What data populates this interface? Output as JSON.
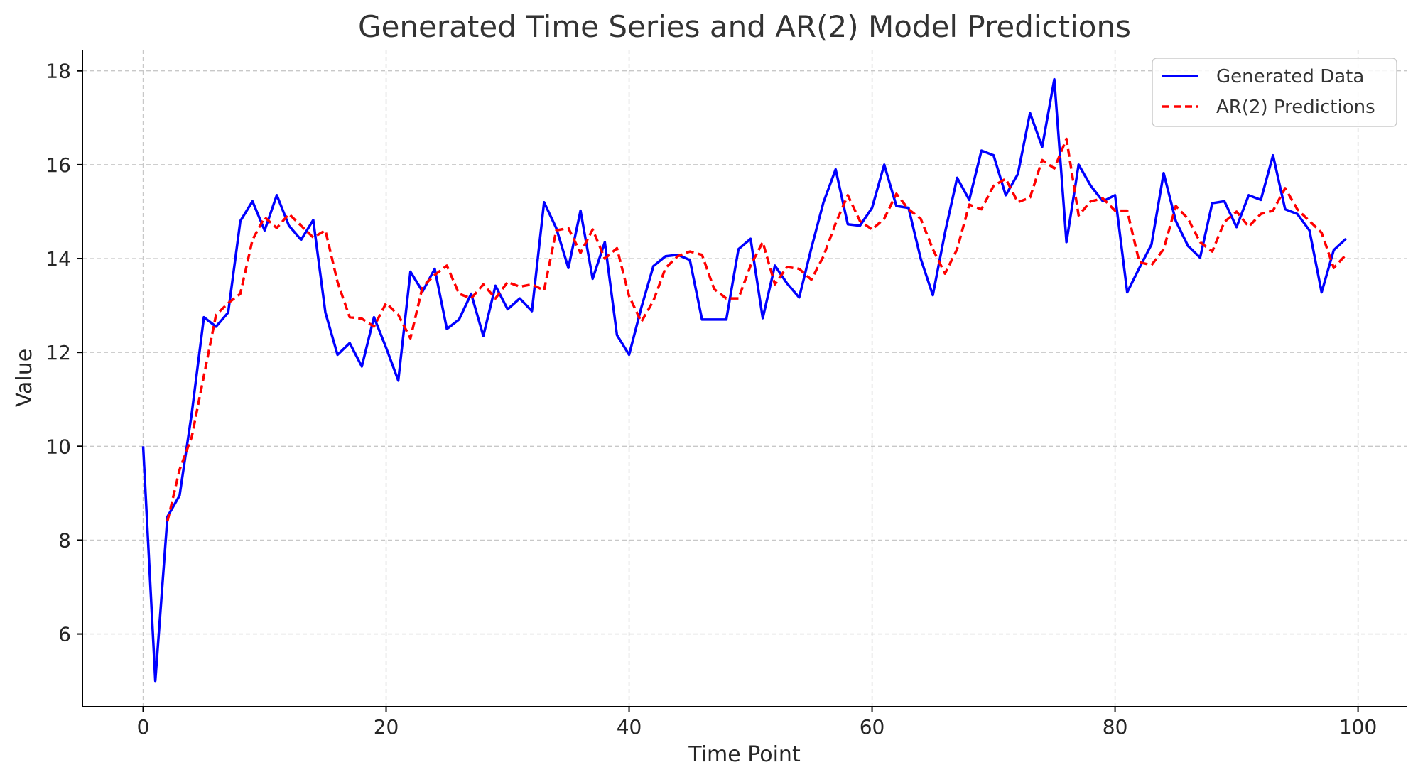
{
  "chart_data": {
    "type": "line",
    "title": "Generated Time Series and AR(2) Model Predictions",
    "xlabel": "Time Point",
    "ylabel": "Value",
    "xlim": [
      -5,
      104
    ],
    "ylim": [
      4.45,
      18.45
    ],
    "xticks": [
      0,
      20,
      40,
      60,
      80,
      100
    ],
    "yticks": [
      6,
      8,
      10,
      12,
      14,
      16,
      18
    ],
    "grid": true,
    "legend_position": "top-right",
    "series": [
      {
        "name": "Generated Data",
        "color": "#0000ff",
        "style": "solid",
        "x_start": 0,
        "values": [
          10.0,
          5.0,
          8.5,
          8.95,
          10.7,
          12.75,
          12.55,
          12.85,
          14.8,
          15.22,
          14.6,
          15.35,
          14.7,
          14.4,
          14.82,
          12.85,
          11.95,
          12.2,
          11.7,
          12.75,
          12.1,
          11.4,
          13.72,
          13.3,
          13.78,
          12.5,
          12.7,
          13.25,
          12.35,
          13.42,
          12.92,
          13.15,
          12.88,
          15.2,
          14.65,
          13.8,
          15.02,
          13.57,
          14.35,
          12.37,
          11.95,
          12.95,
          13.84,
          14.05,
          14.08,
          13.97,
          12.7,
          12.7,
          12.7,
          14.2,
          14.42,
          12.73,
          13.85,
          13.47,
          13.17,
          14.22,
          15.2,
          15.9,
          14.73,
          14.7,
          15.08,
          16.0,
          15.12,
          15.08,
          14.0,
          13.22,
          14.55,
          15.72,
          15.25,
          16.3,
          16.2,
          15.35,
          15.8,
          17.1,
          16.38,
          17.82,
          14.35,
          16.0,
          15.55,
          15.22,
          15.35,
          13.28,
          13.8,
          14.3,
          15.82,
          14.8,
          14.27,
          14.02,
          15.18,
          15.22,
          14.67,
          15.35,
          15.25,
          16.2,
          15.05,
          14.95,
          14.6,
          13.28,
          14.18,
          14.42
        ]
      },
      {
        "name": "AR(2) Predictions",
        "color": "#ff0000",
        "style": "dashed",
        "x_start": 2,
        "values": [
          8.4,
          9.5,
          10.2,
          11.5,
          12.8,
          13.05,
          13.25,
          14.4,
          14.88,
          14.65,
          14.95,
          14.7,
          14.45,
          14.6,
          13.5,
          12.75,
          12.72,
          12.55,
          13.05,
          12.8,
          12.3,
          13.4,
          13.65,
          13.85,
          13.25,
          13.15,
          13.45,
          13.15,
          13.5,
          13.4,
          13.45,
          13.32,
          14.6,
          14.65,
          14.12,
          14.62,
          14.0,
          14.22,
          13.2,
          12.65,
          13.1,
          13.8,
          14.05,
          14.15,
          14.08,
          13.35,
          13.15,
          13.15,
          13.85,
          14.35,
          13.45,
          13.82,
          13.78,
          13.55,
          14.05,
          14.75,
          15.35,
          14.8,
          14.62,
          14.85,
          15.38,
          15.05,
          14.85,
          14.2,
          13.68,
          14.2,
          15.15,
          15.05,
          15.55,
          15.7,
          15.2,
          15.3,
          16.1,
          15.92,
          16.55,
          14.92,
          15.22,
          15.28,
          15.02,
          15.02,
          13.92,
          13.86,
          14.2,
          15.12,
          14.85,
          14.35,
          14.15,
          14.78,
          15.0,
          14.68,
          14.95,
          15.02,
          15.5,
          15.05,
          14.8,
          14.55,
          13.8,
          14.08
        ]
      }
    ]
  }
}
